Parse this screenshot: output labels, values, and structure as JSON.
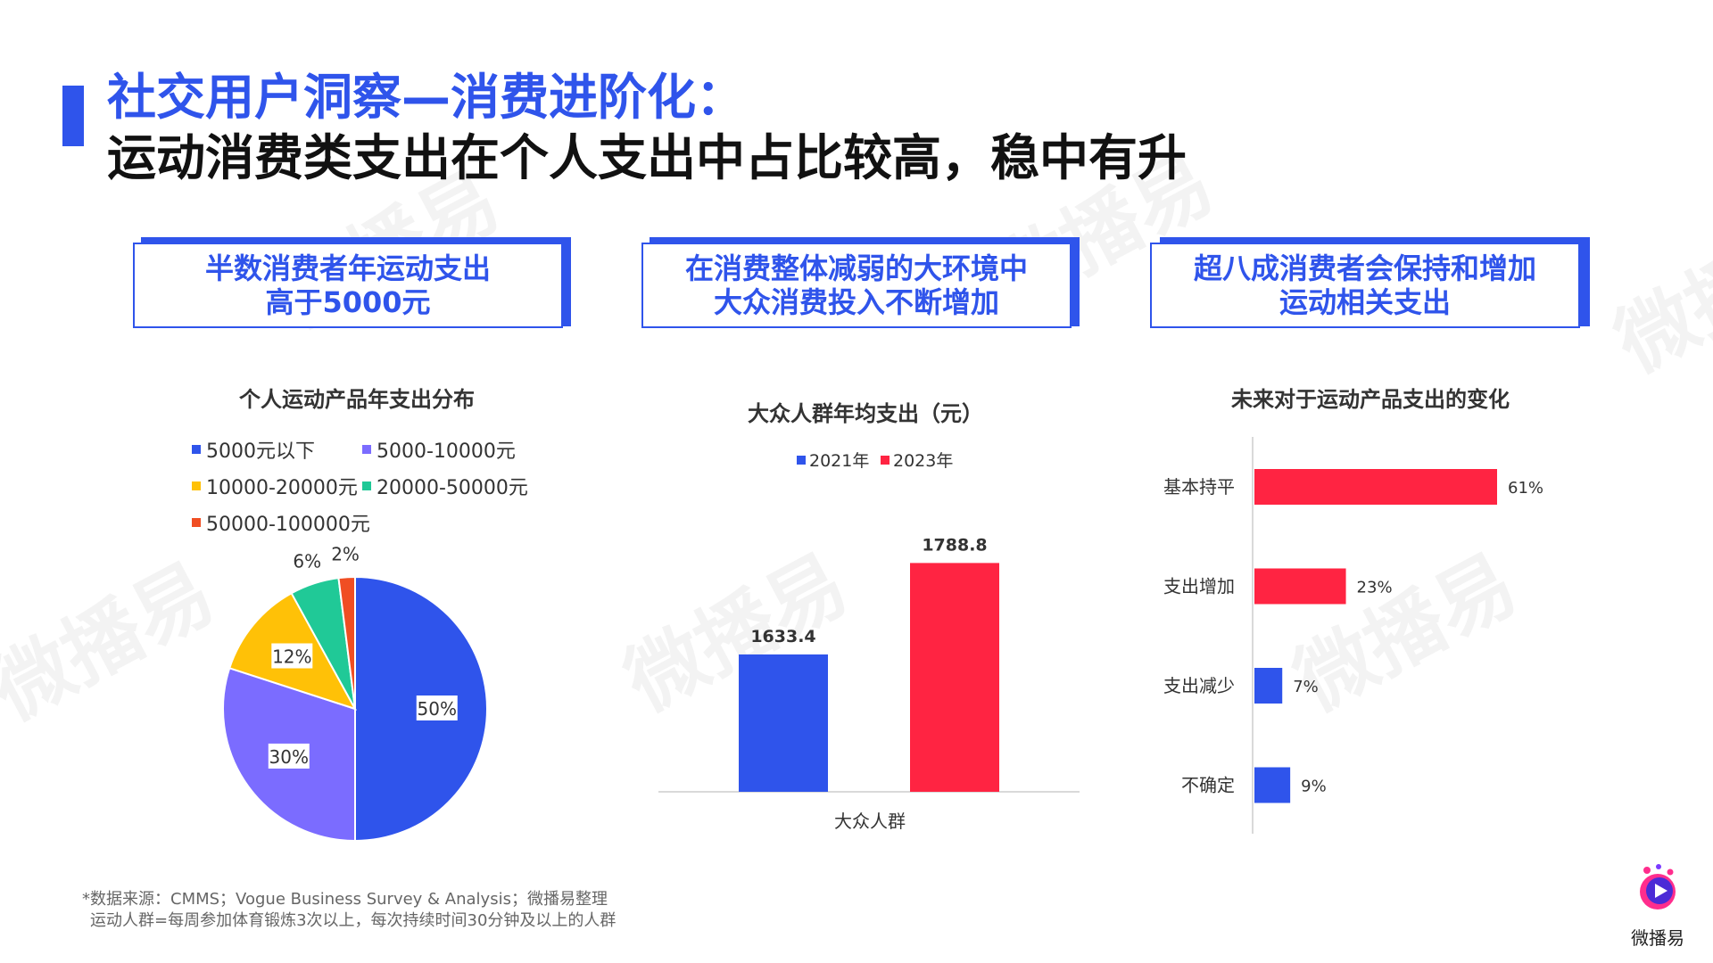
{
  "header": {
    "title_line1": "社交用户洞察—消费进阶化：",
    "title_line2": "运动消费类支出在个人支出中占比较高，稳中有升"
  },
  "watermark": "微播易",
  "boxes": [
    {
      "line1": "半数消费者年运动支出",
      "line2": "高于5000元"
    },
    {
      "line1": "在消费整体减弱的大环境中",
      "line2": "大众消费投入不断增加"
    },
    {
      "line1": "超八成消费者会保持和增加",
      "line2": "运动相关支出"
    }
  ],
  "colors": {
    "accent": "#2f54eb",
    "red": "#ff2442",
    "purple": "#7b6cff",
    "yellow": "#ffc107",
    "teal": "#20c997",
    "orange": "#f04e23"
  },
  "chart_data": [
    {
      "type": "pie",
      "title": "个人运动产品年支出分布",
      "legend": [
        "5000元以下",
        "5000-10000元",
        "10000-20000元",
        "20000-50000元",
        "50000-100000元"
      ],
      "values": [
        50,
        30,
        12,
        6,
        2
      ],
      "labels": [
        "50%",
        "30%",
        "12%",
        "6%",
        "2%"
      ],
      "colors": [
        "#2f54eb",
        "#7b6cff",
        "#ffc107",
        "#20c997",
        "#f04e23"
      ]
    },
    {
      "type": "bar",
      "title": "大众人群年均支出（元）",
      "categories": [
        "大众人群"
      ],
      "series": [
        {
          "name": "2021年",
          "values": [
            1633.4
          ],
          "color": "#2f54eb"
        },
        {
          "name": "2023年",
          "values": [
            1788.8
          ],
          "color": "#ff2442"
        }
      ],
      "value_labels": [
        "1633.4",
        "1788.8"
      ]
    },
    {
      "type": "bar",
      "orientation": "horizontal",
      "title": "未来对于运动产品支出的变化",
      "categories": [
        "基本持平",
        "支出增加",
        "支出减少",
        "不确定"
      ],
      "values": [
        61,
        23,
        7,
        9
      ],
      "value_labels": [
        "61%",
        "23%",
        "7%",
        "9%"
      ],
      "colors": [
        "#ff2442",
        "#ff2442",
        "#2f54eb",
        "#2f54eb"
      ]
    }
  ],
  "footnote": {
    "line1": "*数据来源：CMMS；Vogue Business Survey & Analysis；微播易整理",
    "line2": "运动人群=每周参加体育锻炼3次以上，每次持续时间30分钟及以上的人群"
  },
  "brand": {
    "name": "微播易"
  }
}
